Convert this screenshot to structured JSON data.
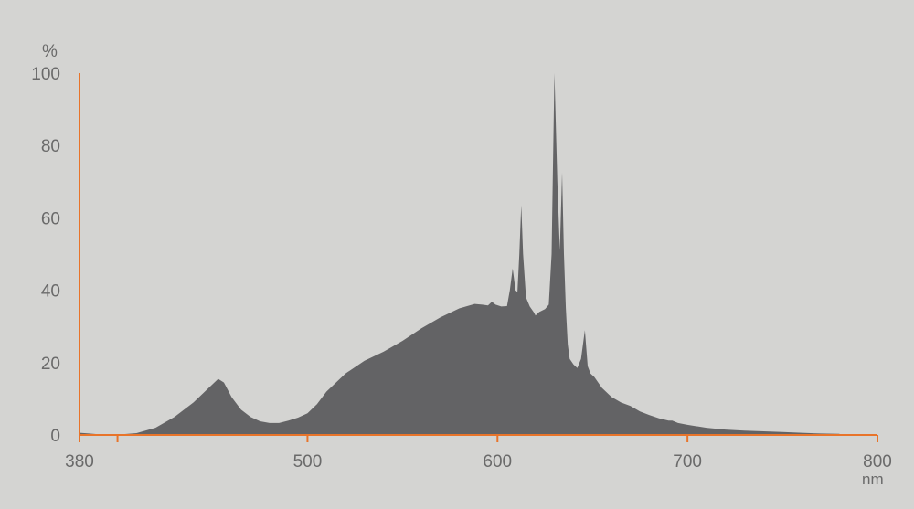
{
  "chart_data": {
    "type": "area",
    "title": "",
    "xlabel": "nm",
    "ylabel": "%",
    "xlim": [
      380,
      800
    ],
    "ylim": [
      0,
      100
    ],
    "grid": false,
    "x_ticks": [
      380,
      400,
      500,
      600,
      700,
      800
    ],
    "x_tick_labels": [
      "380",
      "",
      "500",
      "600",
      "700",
      "800"
    ],
    "y_ticks": [
      0,
      20,
      40,
      60,
      80,
      100
    ],
    "y_tick_labels": [
      "0",
      "20",
      "40",
      "60",
      "80",
      "100"
    ],
    "colors": {
      "fill": "#636365",
      "axis": "#e8742a",
      "background": "#d4d4d2",
      "text": "#6a6a6a"
    },
    "series": [
      {
        "points": [
          [
            380,
            0.6
          ],
          [
            385,
            0.4
          ],
          [
            390,
            0.2
          ],
          [
            400,
            0.1
          ],
          [
            410,
            0.5
          ],
          [
            420,
            2
          ],
          [
            430,
            5
          ],
          [
            440,
            9
          ],
          [
            448,
            13
          ],
          [
            453,
            15.5
          ],
          [
            456,
            14.5
          ],
          [
            460,
            10.5
          ],
          [
            465,
            7
          ],
          [
            470,
            5
          ],
          [
            475,
            3.8
          ],
          [
            480,
            3.3
          ],
          [
            485,
            3.3
          ],
          [
            490,
            4
          ],
          [
            495,
            4.8
          ],
          [
            500,
            6
          ],
          [
            505,
            8.5
          ],
          [
            510,
            12
          ],
          [
            520,
            17
          ],
          [
            530,
            20.5
          ],
          [
            540,
            23
          ],
          [
            550,
            26
          ],
          [
            560,
            29.5
          ],
          [
            570,
            32.5
          ],
          [
            580,
            35
          ],
          [
            588,
            36.2
          ],
          [
            592,
            36
          ],
          [
            595,
            35.8
          ],
          [
            597,
            36.8
          ],
          [
            599,
            36
          ],
          [
            602,
            35.5
          ],
          [
            605,
            35.6
          ],
          [
            606.5,
            40
          ],
          [
            608,
            46
          ],
          [
            609.5,
            40
          ],
          [
            610.5,
            39.5
          ],
          [
            611.5,
            50
          ],
          [
            612.5,
            63.5
          ],
          [
            613.5,
            50
          ],
          [
            615,
            38
          ],
          [
            617,
            35.5
          ],
          [
            619,
            34
          ],
          [
            620,
            33
          ],
          [
            622,
            34
          ],
          [
            625,
            34.8
          ],
          [
            627,
            36
          ],
          [
            628.5,
            50
          ],
          [
            630,
            100
          ],
          [
            631.5,
            70
          ],
          [
            632.8,
            51
          ],
          [
            634,
            72.5
          ],
          [
            635,
            50
          ],
          [
            636,
            35
          ],
          [
            637,
            25
          ],
          [
            638,
            21
          ],
          [
            640,
            19.5
          ],
          [
            642,
            18.5
          ],
          [
            644,
            21
          ],
          [
            646,
            29
          ],
          [
            647.5,
            19
          ],
          [
            649,
            17
          ],
          [
            651,
            16
          ],
          [
            655,
            13
          ],
          [
            660,
            10.5
          ],
          [
            665,
            9
          ],
          [
            670,
            8
          ],
          [
            675,
            6.5
          ],
          [
            680,
            5.5
          ],
          [
            685,
            4.6
          ],
          [
            690,
            4
          ],
          [
            692,
            4
          ],
          [
            695,
            3.3
          ],
          [
            700,
            2.8
          ],
          [
            710,
            2
          ],
          [
            720,
            1.5
          ],
          [
            730,
            1.2
          ],
          [
            740,
            1
          ],
          [
            750,
            0.8
          ],
          [
            760,
            0.6
          ],
          [
            770,
            0.4
          ],
          [
            780,
            0.3
          ]
        ]
      }
    ]
  }
}
